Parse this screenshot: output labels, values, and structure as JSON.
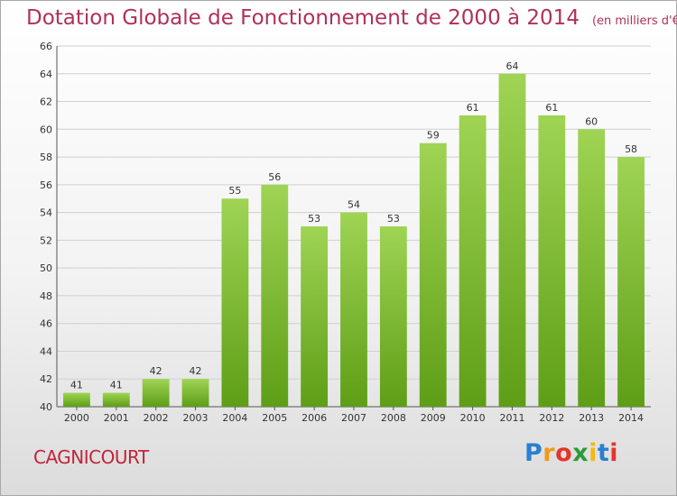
{
  "header": {
    "title": "Dotation Globale de Fonctionnement de 2000 à 2014",
    "subtitle": "(en milliers d'€)"
  },
  "footer": {
    "commune": "CAGNICOURT",
    "logo_text": "Proxiti"
  },
  "colors": {
    "bar_top": "#9fd454",
    "bar_bottom": "#5e9e16",
    "title": "#b0305c",
    "grid": "#cfcfcf"
  },
  "chart_data": {
    "type": "bar",
    "title": "Dotation Globale de Fonctionnement de 2000 à 2014",
    "subtitle": "(en milliers d'€)",
    "xlabel": "",
    "ylabel": "",
    "categories": [
      "2000",
      "2001",
      "2002",
      "2003",
      "2004",
      "2005",
      "2006",
      "2007",
      "2008",
      "2009",
      "2010",
      "2011",
      "2012",
      "2013",
      "2014"
    ],
    "values": [
      41,
      41,
      42,
      42,
      55,
      56,
      53,
      54,
      53,
      59,
      61,
      64,
      61,
      60,
      58
    ],
    "ylim": [
      40,
      66
    ],
    "yticks": [
      40,
      42,
      44,
      46,
      48,
      50,
      52,
      54,
      56,
      58,
      60,
      62,
      64,
      66
    ],
    "grid": true,
    "legend": "none"
  }
}
